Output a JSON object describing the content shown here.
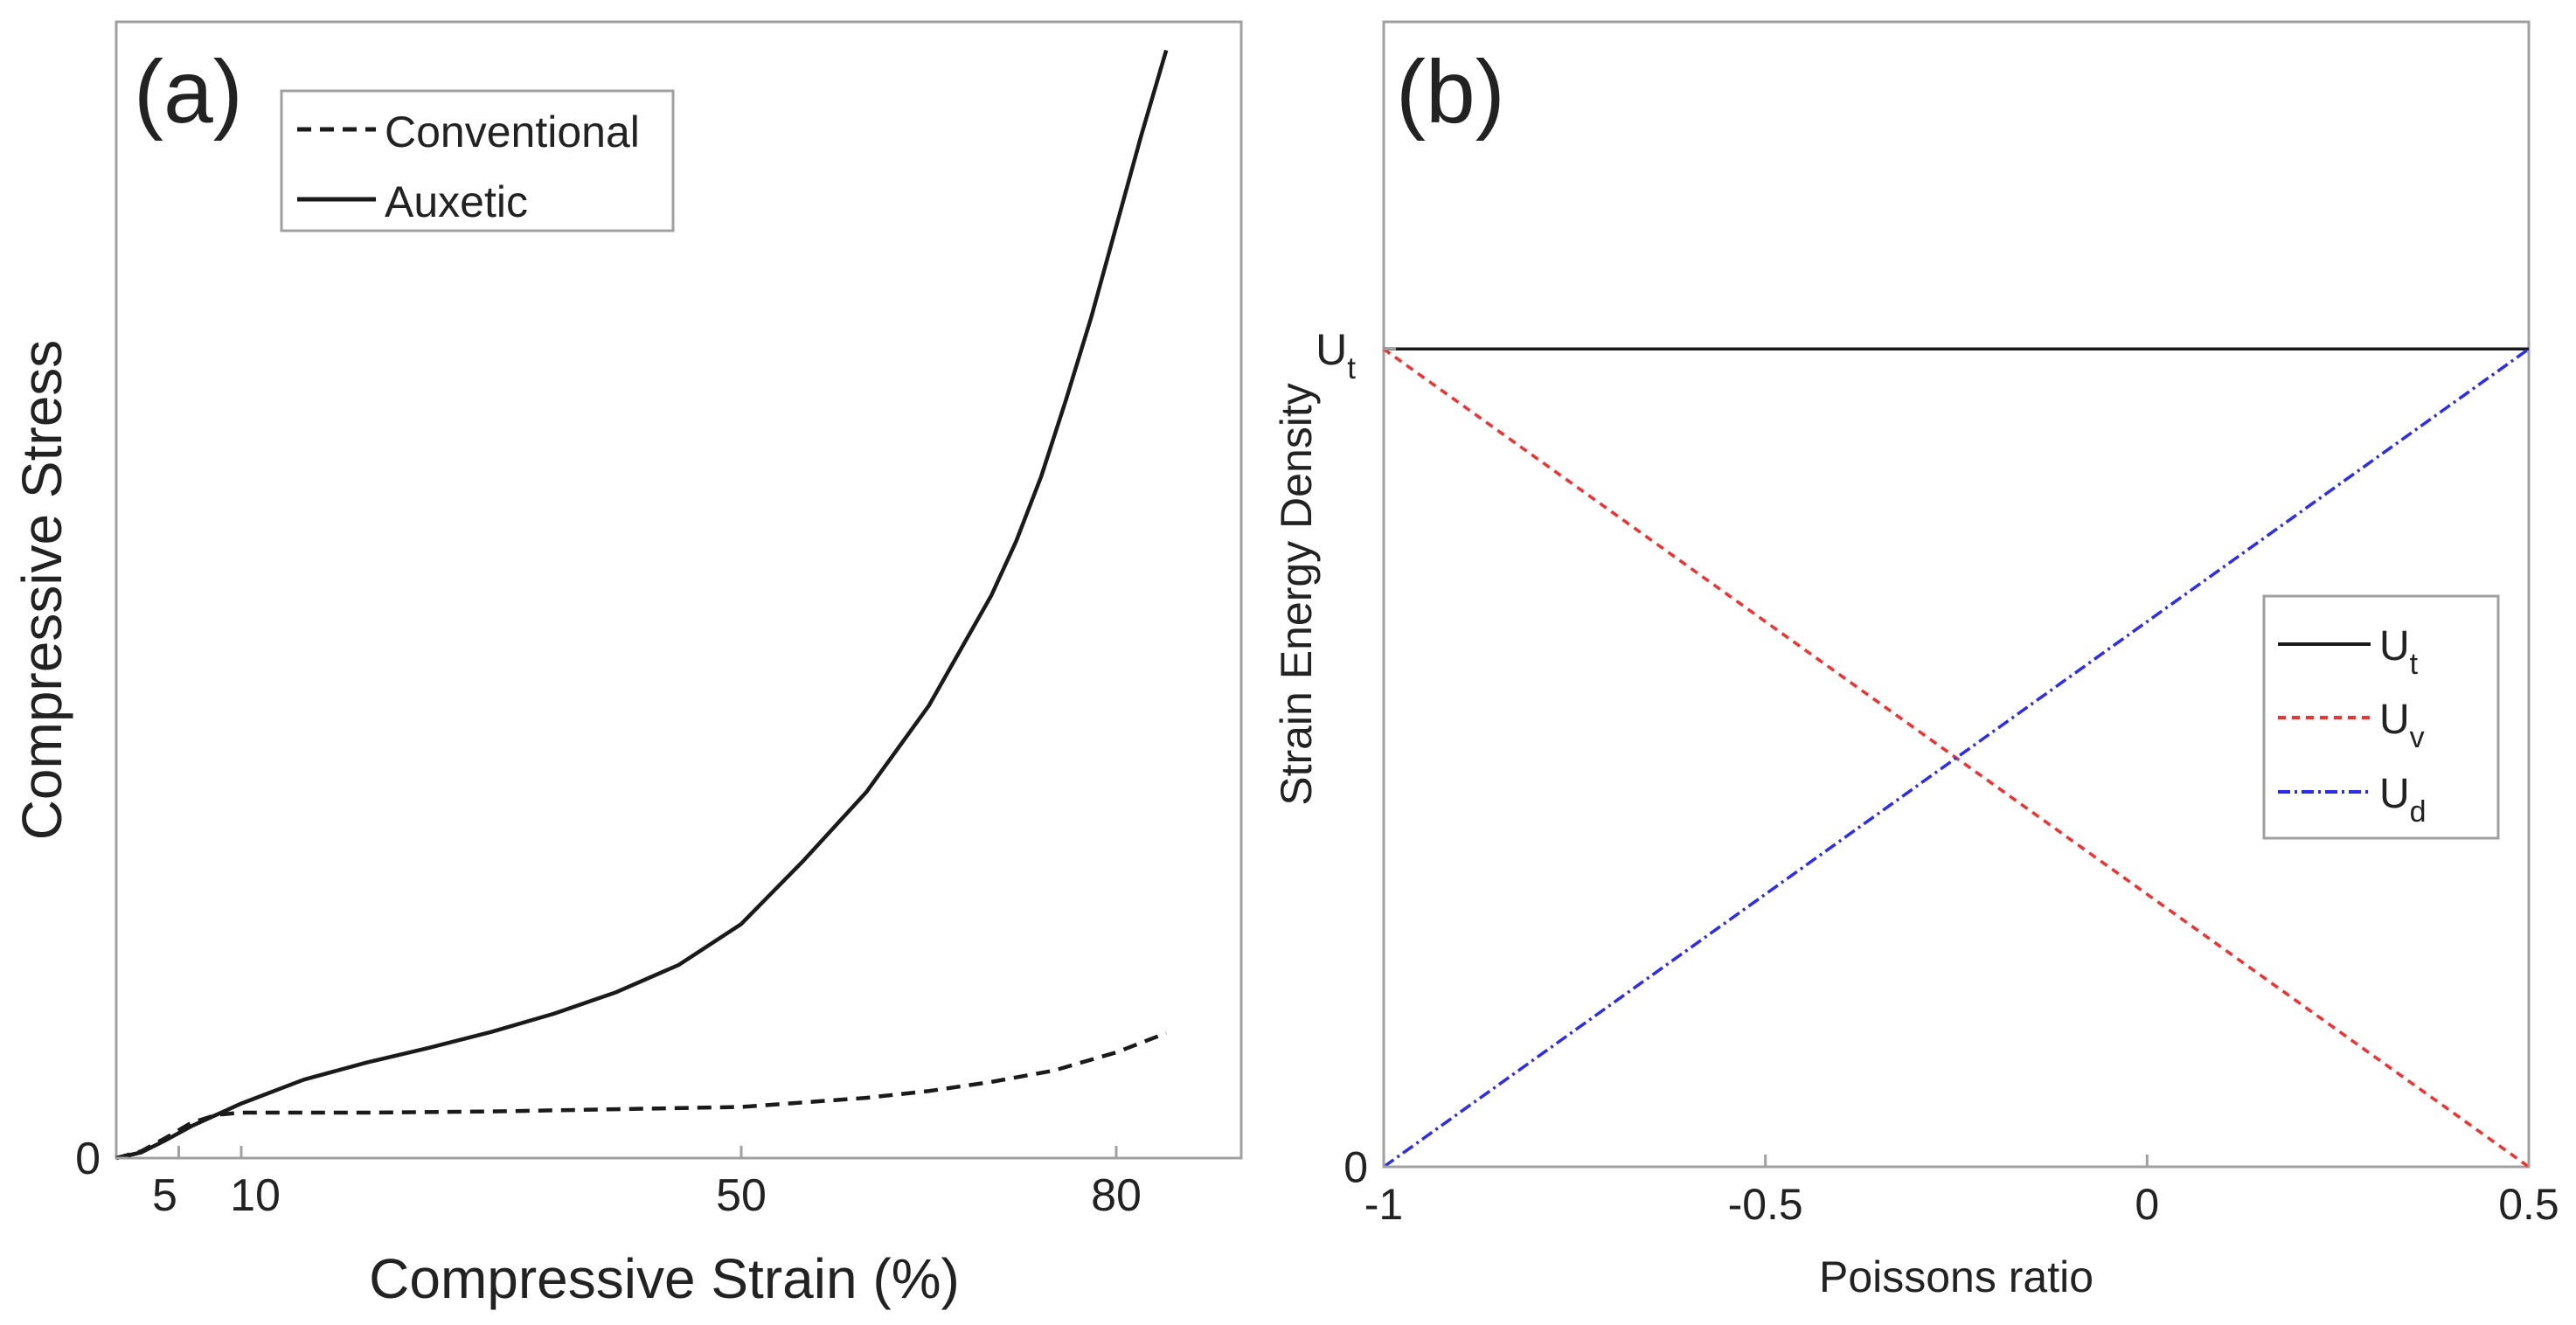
{
  "chart_data": [
    {
      "type": "line",
      "panel_label": "(a)",
      "xlabel": "Compressive Strain (%)",
      "ylabel": "Compressive Stress",
      "xlim": [
        0,
        90
      ],
      "ylim": [
        0,
        100
      ],
      "xticks": [
        {
          "value": 5,
          "label": "5"
        },
        {
          "value": 10,
          "label": "10"
        },
        {
          "value": 50,
          "label": "50"
        },
        {
          "value": 80,
          "label": "80"
        }
      ],
      "yticks": [
        {
          "value": 0,
          "label": "0"
        }
      ],
      "legend": {
        "position": "top-left",
        "entries": [
          {
            "series": "conventional",
            "label": "Conventional"
          },
          {
            "series": "auxetic",
            "label": "Auxetic"
          }
        ]
      },
      "series": [
        {
          "id": "conventional",
          "name": "Conventional",
          "style": "dashed",
          "color": "#1a1a1a",
          "x": [
            0,
            2,
            4,
            6,
            8,
            10,
            20,
            30,
            40,
            50,
            55,
            60,
            65,
            70,
            75,
            80,
            84
          ],
          "y": [
            0,
            0.6,
            1.8,
            3.1,
            3.8,
            4.0,
            4.0,
            4.1,
            4.3,
            4.5,
            4.9,
            5.3,
            5.9,
            6.7,
            7.7,
            9.3,
            11.0
          ]
        },
        {
          "id": "auxetic",
          "name": "Auxetic",
          "style": "solid",
          "color": "#1a1a1a",
          "x": [
            0,
            2,
            4,
            6,
            8,
            10,
            15,
            20,
            25,
            30,
            35,
            40,
            45,
            50,
            55,
            60,
            65,
            70,
            72,
            74,
            76,
            78,
            80,
            82,
            84
          ],
          "y": [
            0,
            0.5,
            1.6,
            2.8,
            3.8,
            4.8,
            6.9,
            8.4,
            9.7,
            11.1,
            12.7,
            14.6,
            17.0,
            20.6,
            26.2,
            32.2,
            39.8,
            49.5,
            54.3,
            60.0,
            66.8,
            74.0,
            82.0,
            90.0,
            97.5
          ]
        }
      ]
    },
    {
      "type": "line",
      "panel_label": "(b)",
      "xlabel": "Poissons ratio",
      "ylabel": "Strain Energy Density",
      "xlim": [
        -1,
        0.5
      ],
      "ylim": [
        0,
        1.4
      ],
      "xticks": [
        {
          "value": -1,
          "label": "-1"
        },
        {
          "value": -0.5,
          "label": "-0.5"
        },
        {
          "value": 0,
          "label": "0"
        },
        {
          "value": 0.5,
          "label": "0.5"
        }
      ],
      "yticks": [
        {
          "value": 0,
          "label": "0",
          "sub": ""
        },
        {
          "value": 1,
          "label": "U",
          "sub": "t"
        }
      ],
      "legend": {
        "position": "right",
        "entries": [
          {
            "series": "Ut",
            "label": "U",
            "sub": "t"
          },
          {
            "series": "Uv",
            "label": "U",
            "sub": "v"
          },
          {
            "series": "Ud",
            "label": "U",
            "sub": "d"
          }
        ]
      },
      "series": [
        {
          "id": "Ut",
          "name": "Ut",
          "style": "solid",
          "color": "#1a1a1a",
          "x": [
            -1,
            0.5
          ],
          "y": [
            1,
            1
          ]
        },
        {
          "id": "Uv",
          "name": "Uv",
          "style": "dashed",
          "color": "#ff2a2a",
          "x": [
            -1,
            0.5
          ],
          "y": [
            1,
            0
          ]
        },
        {
          "id": "Ud",
          "name": "Ud",
          "style": "dashdot",
          "color": "#2a2aff",
          "x": [
            -1,
            0.5
          ],
          "y": [
            0,
            1
          ]
        }
      ]
    }
  ]
}
